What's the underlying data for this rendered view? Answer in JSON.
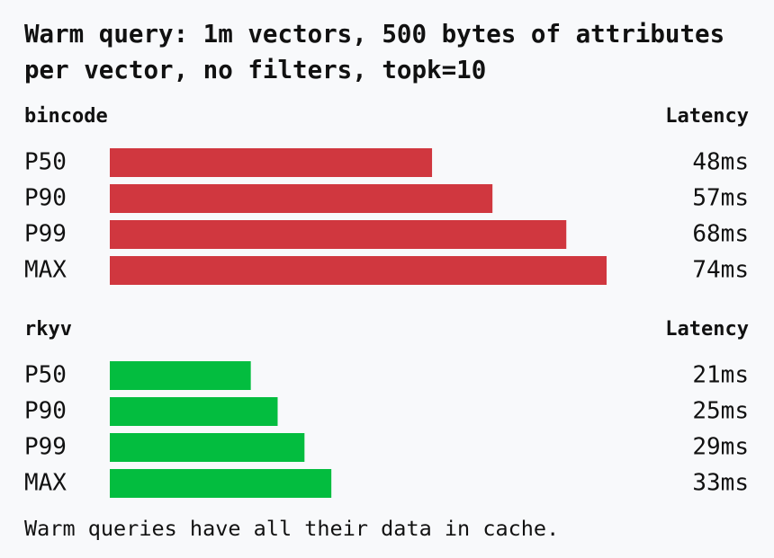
{
  "title": "Warm query: 1m vectors, 500 bytes of attributes per vector, no filters, topk=10",
  "chart_data": [
    {
      "type": "bar",
      "orientation": "horizontal",
      "title": "bincode",
      "value_header": "Latency",
      "categories": [
        "P50",
        "P90",
        "P99",
        "MAX"
      ],
      "values": [
        48,
        57,
        68,
        74
      ],
      "value_labels": [
        "48ms",
        "57ms",
        "68ms",
        "74ms"
      ],
      "color": "#d0373f"
    },
    {
      "type": "bar",
      "orientation": "horizontal",
      "title": "rkyv",
      "value_header": "Latency",
      "categories": [
        "P50",
        "P90",
        "P99",
        "MAX"
      ],
      "values": [
        21,
        25,
        29,
        33
      ],
      "value_labels": [
        "21ms",
        "25ms",
        "29ms",
        "33ms"
      ],
      "color": "#03bd3f"
    }
  ],
  "note": "Warm queries have all their data in cache."
}
